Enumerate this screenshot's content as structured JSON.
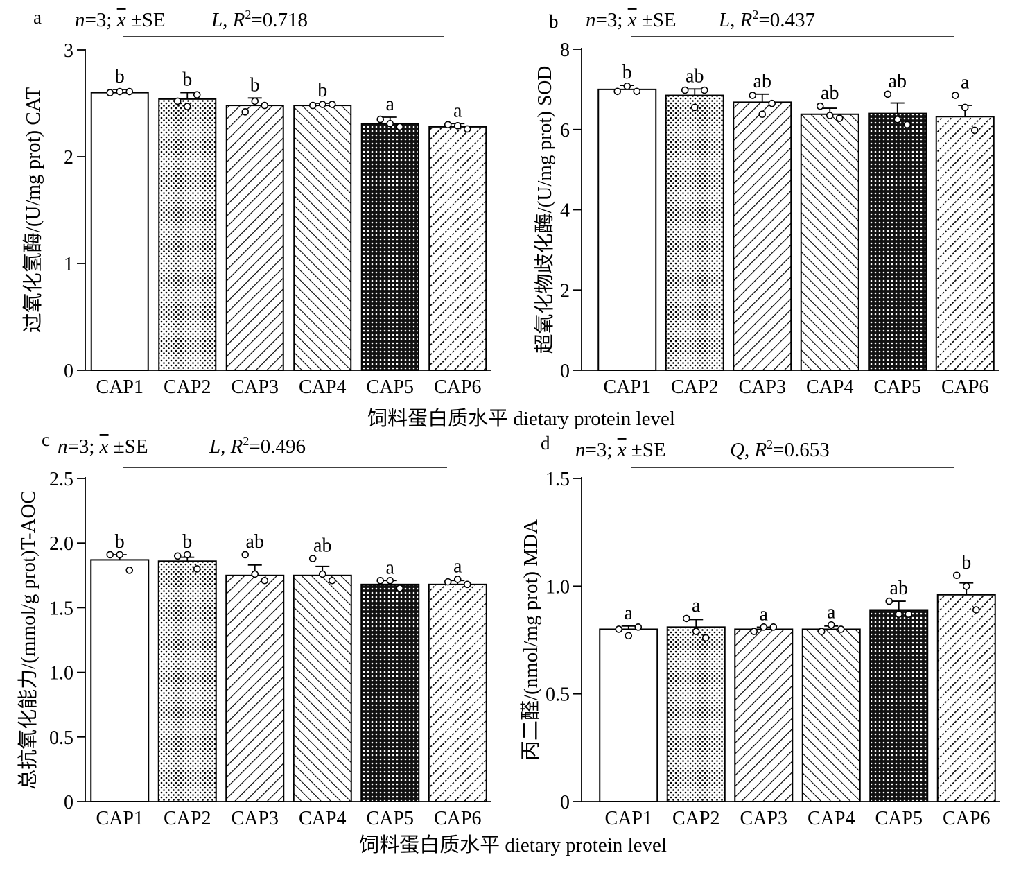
{
  "figure": {
    "xlabel_top": "饲料蛋白质水平 dietary protein level",
    "xlabel_bottom": "饲料蛋白质水平 dietary protein level"
  },
  "chart_data": [
    {
      "type": "bar",
      "panel": "a",
      "stats_n": "n",
      "stats_rest": "=3; ",
      "stats_xbar": "x",
      "stats_se": " ±SE",
      "fit_letter": "L",
      "fit_r2": ", R",
      "fit_value": "=0.718",
      "ylabel": "过氧化氢酶/(U/mg prot) CAT",
      "categories": [
        "CAP1",
        "CAP2",
        "CAP3",
        "CAP4",
        "CAP5",
        "CAP6"
      ],
      "values": [
        2.6,
        2.54,
        2.48,
        2.48,
        2.31,
        2.28
      ],
      "se": [
        0.03,
        0.06,
        0.07,
        0.02,
        0.06,
        0.03
      ],
      "points": [
        [
          2.6,
          2.61,
          2.61
        ],
        [
          2.52,
          2.47,
          2.58
        ],
        [
          2.42,
          2.52,
          2.48
        ],
        [
          2.48,
          2.49,
          2.49
        ],
        [
          2.35,
          2.31,
          2.28
        ],
        [
          2.3,
          2.29,
          2.26
        ]
      ],
      "letters": [
        "b",
        "b",
        "b",
        "b",
        "a",
        "a"
      ],
      "ylim": [
        0,
        3
      ],
      "yticks": [
        "0",
        "1",
        "2",
        "3"
      ],
      "patterns": [
        "none",
        "dots",
        "diag-fwd",
        "diag-back",
        "dense",
        "diag-fwd-dash"
      ]
    },
    {
      "type": "bar",
      "panel": "b",
      "stats_n": "n",
      "stats_rest": "=3; ",
      "stats_xbar": "x",
      "stats_se": " ±SE",
      "fit_letter": "L",
      "fit_r2": ", R",
      "fit_value": "=0.437",
      "ylabel": "超氧化物歧化酶/(U/mg prot) SOD",
      "categories": [
        "CAP1",
        "CAP2",
        "CAP3",
        "CAP4",
        "CAP5",
        "CAP6"
      ],
      "values": [
        7.0,
        6.85,
        6.68,
        6.38,
        6.4,
        6.32
      ],
      "se": [
        0.1,
        0.16,
        0.2,
        0.15,
        0.26,
        0.28
      ],
      "points": [
        [
          6.95,
          7.08,
          6.95
        ],
        [
          6.98,
          6.55,
          6.98
        ],
        [
          6.85,
          6.38,
          6.65
        ],
        [
          6.58,
          6.35,
          6.28
        ],
        [
          6.88,
          6.25,
          6.12
        ],
        [
          6.85,
          6.55,
          5.98
        ]
      ],
      "letters": [
        "b",
        "ab",
        "ab",
        "ab",
        "ab",
        "a"
      ],
      "ylim": [
        0,
        8
      ],
      "yticks": [
        "0",
        "2",
        "4",
        "6",
        "8"
      ],
      "patterns": [
        "none",
        "dots",
        "diag-fwd",
        "diag-back",
        "dense",
        "diag-fwd-dash"
      ]
    },
    {
      "type": "bar",
      "panel": "c",
      "stats_n": "n",
      "stats_rest": "=3; ",
      "stats_xbar": "x",
      "stats_se": " ±SE",
      "fit_letter": "L",
      "fit_r2": ", R",
      "fit_value": "=0.496",
      "ylabel": "总抗氧化能力/(mmol/g prot)T-AOC",
      "categories": [
        "CAP1",
        "CAP2",
        "CAP3",
        "CAP4",
        "CAP5",
        "CAP6"
      ],
      "values": [
        1.87,
        1.86,
        1.75,
        1.75,
        1.68,
        1.68
      ],
      "se": [
        0.04,
        0.03,
        0.08,
        0.07,
        0.03,
        0.03
      ],
      "points": [
        [
          1.91,
          1.91,
          1.79
        ],
        [
          1.9,
          1.91,
          1.8
        ],
        [
          1.91,
          1.76,
          1.71
        ],
        [
          1.88,
          1.76,
          1.71
        ],
        [
          1.71,
          1.71,
          1.65
        ],
        [
          1.7,
          1.72,
          1.68
        ]
      ],
      "letters": [
        "b",
        "b",
        "ab",
        "ab",
        "a",
        "a"
      ],
      "ylim": [
        0,
        2.5
      ],
      "yticks": [
        "0",
        "0.5",
        "1.0",
        "1.5",
        "2.0",
        "2.5"
      ],
      "patterns": [
        "none",
        "dots",
        "diag-fwd",
        "diag-back",
        "dense",
        "diag-fwd-dash"
      ]
    },
    {
      "type": "bar",
      "panel": "d",
      "stats_n": "n",
      "stats_rest": "=3; ",
      "stats_xbar": "x",
      "stats_se": " ±SE",
      "fit_letter": "Q",
      "fit_r2": ", R",
      "fit_value": "=0.653",
      "ylabel": "丙二醛/(nmol/mg prot) MDA",
      "categories": [
        "CAP1",
        "CAP2",
        "CAP3",
        "CAP4",
        "CAP5",
        "CAP6"
      ],
      "values": [
        0.8,
        0.81,
        0.8,
        0.8,
        0.89,
        0.96
      ],
      "se": [
        0.015,
        0.035,
        0.01,
        0.015,
        0.04,
        0.055
      ],
      "points": [
        [
          0.8,
          0.77,
          0.81
        ],
        [
          0.85,
          0.79,
          0.76
        ],
        [
          0.79,
          0.81,
          0.81
        ],
        [
          0.79,
          0.82,
          0.8
        ],
        [
          0.93,
          0.87,
          0.87
        ],
        [
          1.05,
          1.0,
          0.89
        ]
      ],
      "letters": [
        "a",
        "a",
        "a",
        "a",
        "ab",
        "b"
      ],
      "ylim": [
        0,
        1.5
      ],
      "yticks": [
        "0",
        "0.5",
        "1.0",
        "1.5"
      ],
      "patterns": [
        "none",
        "dots",
        "diag-fwd",
        "diag-back",
        "dense",
        "diag-fwd-dash"
      ]
    }
  ]
}
